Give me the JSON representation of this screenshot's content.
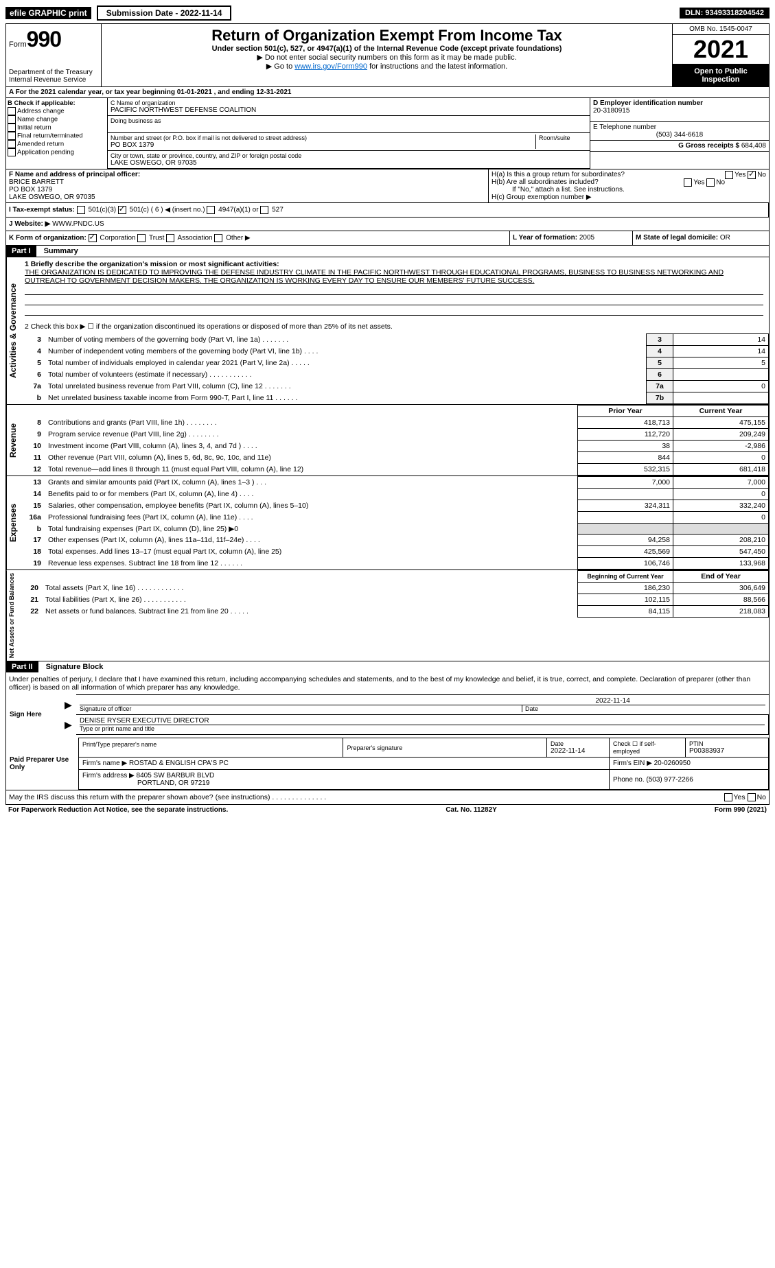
{
  "top": {
    "efile": "efile GRAPHIC print",
    "subdate_label": "Submission Date - 2022-11-14",
    "dln": "DLN: 93493318204542"
  },
  "header": {
    "form_prefix": "Form",
    "form_num": "990",
    "dept": "Department of the Treasury",
    "irs": "Internal Revenue Service",
    "title": "Return of Organization Exempt From Income Tax",
    "sub1": "Under section 501(c), 527, or 4947(a)(1) of the Internal Revenue Code (except private foundations)",
    "sub2": "▶ Do not enter social security numbers on this form as it may be made public.",
    "sub3_prefix": "▶ Go to ",
    "sub3_link": "www.irs.gov/Form990",
    "sub3_suffix": " for instructions and the latest information.",
    "omb": "OMB No. 1545-0047",
    "year": "2021",
    "open": "Open to Public Inspection"
  },
  "periodA": "A For the 2021 calendar year, or tax year beginning 01-01-2021    , and ending 12-31-2021",
  "sectionB": {
    "label": "B Check if applicable:",
    "opts": [
      "Address change",
      "Name change",
      "Initial return",
      "Final return/terminated",
      "Amended return",
      "Application pending"
    ]
  },
  "sectionC": {
    "name_label": "C Name of organization",
    "name": "PACIFIC NORTHWEST DEFENSE COALITION",
    "dba_label": "Doing business as",
    "addr_label": "Number and street (or P.O. box if mail is not delivered to street address)",
    "room_label": "Room/suite",
    "addr": "PO BOX 1379",
    "city_label": "City or town, state or province, country, and ZIP or foreign postal code",
    "city": "LAKE OSWEGO, OR  97035"
  },
  "sectionD": {
    "label": "D Employer identification number",
    "ein": "20-3180915"
  },
  "sectionE": {
    "label": "E Telephone number",
    "phone": "(503) 344-6618"
  },
  "sectionG": {
    "label": "G Gross receipts $",
    "amount": "684,408"
  },
  "sectionF": {
    "label": "F Name and address of principal officer:",
    "name": "BRICE BARRETT",
    "addr1": "PO BOX 1379",
    "addr2": "LAKE OSWEGO, OR  97035"
  },
  "sectionH": {
    "a": "H(a)  Is this a group return for subordinates?",
    "b": "H(b)  Are all subordinates included?",
    "note": "If \"No,\" attach a list. See instructions.",
    "c": "H(c)  Group exemption number ▶",
    "yes": "Yes",
    "no": "No"
  },
  "sectionI": {
    "label": "I    Tax-exempt status:",
    "o1": "501(c)(3)",
    "o2": "501(c) ( 6 ) ◀ (insert no.)",
    "o3": "4947(a)(1) or",
    "o4": "527"
  },
  "sectionJ": {
    "label": "J   Website: ▶",
    "url": "WWW.PNDC.US"
  },
  "sectionK": {
    "label": "K Form of organization:",
    "o1": "Corporation",
    "o2": "Trust",
    "o3": "Association",
    "o4": "Other ▶"
  },
  "sectionL": {
    "label": "L Year of formation:",
    "val": "2005"
  },
  "sectionM": {
    "label": "M State of legal domicile:",
    "val": "OR"
  },
  "part1": {
    "header": "Part I",
    "title": "Summary",
    "line1_label": "1  Briefly describe the organization's mission or most significant activities:",
    "mission": "THE ORGANIZATION IS DEDICATED TO IMPROVING THE DEFENSE INDUSTRY CLIMATE IN THE PACIFIC NORTHWEST THROUGH EDUCATIONAL PROGRAMS, BUSINESS TO BUSINESS NETWORKING AND OUTREACH TO GOVERNMENT DECISION MAKERS. THE ORGANIZATION IS WORKING EVERY DAY TO ENSURE OUR MEMBERS' FUTURE SUCCESS.",
    "line2": "2   Check this box ▶ ☐ if the organization discontinued its operations or disposed of more than 25% of its net assets.",
    "gov_label": "Activities & Governance",
    "rev_label": "Revenue",
    "exp_label": "Expenses",
    "net_label": "Net Assets or Fund Balances",
    "rows_top": [
      {
        "n": "3",
        "d": "Number of voting members of the governing body (Part VI, line 1a)   .    .    .    .    .    .    .",
        "box": "3",
        "v": "14"
      },
      {
        "n": "4",
        "d": "Number of independent voting members of the governing body (Part VI, line 1b)   .    .    .    .",
        "box": "4",
        "v": "14"
      },
      {
        "n": "5",
        "d": "Total number of individuals employed in calendar year 2021 (Part V, line 2a)   .    .    .    .    .",
        "box": "5",
        "v": "5"
      },
      {
        "n": "6",
        "d": "Total number of volunteers (estimate if necessary)    .    .    .    .    .    .    .    .    .    .    .",
        "box": "6",
        "v": ""
      },
      {
        "n": "7a",
        "d": "Total unrelated business revenue from Part VIII, column (C), line 12   .    .    .    .    .    .    .",
        "box": "7a",
        "v": "0"
      },
      {
        "n": "b",
        "d": "Net unrelated business taxable income from Form 990-T, Part I, line 11   .    .    .    .    .    .",
        "box": "7b",
        "v": ""
      }
    ],
    "col_prior": "Prior Year",
    "col_current": "Current Year",
    "rows_rev": [
      {
        "n": "8",
        "d": "Contributions and grants (Part VIII, line 1h)    .    .    .    .    .    .    .    .",
        "p": "418,713",
        "c": "475,155"
      },
      {
        "n": "9",
        "d": "Program service revenue (Part VIII, line 2g)    .    .    .    .    .    .    .    .",
        "p": "112,720",
        "c": "209,249"
      },
      {
        "n": "10",
        "d": "Investment income (Part VIII, column (A), lines 3, 4, and 7d )    .    .    .    .",
        "p": "38",
        "c": "-2,986"
      },
      {
        "n": "11",
        "d": "Other revenue (Part VIII, column (A), lines 5, 6d, 8c, 9c, 10c, and 11e)",
        "p": "844",
        "c": "0"
      },
      {
        "n": "12",
        "d": "Total revenue—add lines 8 through 11 (must equal Part VIII, column (A), line 12)",
        "p": "532,315",
        "c": "681,418"
      }
    ],
    "rows_exp": [
      {
        "n": "13",
        "d": "Grants and similar amounts paid (Part IX, column (A), lines 1–3 )   .    .    .",
        "p": "7,000",
        "c": "7,000"
      },
      {
        "n": "14",
        "d": "Benefits paid to or for members (Part IX, column (A), line 4)   .    .    .    .",
        "p": "",
        "c": "0"
      },
      {
        "n": "15",
        "d": "Salaries, other compensation, employee benefits (Part IX, column (A), lines 5–10)",
        "p": "324,311",
        "c": "332,240"
      },
      {
        "n": "16a",
        "d": "Professional fundraising fees (Part IX, column (A), line 11e)   .    .    .    .",
        "p": "",
        "c": "0"
      },
      {
        "n": "b",
        "d": "Total fundraising expenses (Part IX, column (D), line 25) ▶0",
        "p": "",
        "c": "",
        "shaded": true
      },
      {
        "n": "17",
        "d": "Other expenses (Part IX, column (A), lines 11a–11d, 11f–24e)    .    .    .    .",
        "p": "94,258",
        "c": "208,210"
      },
      {
        "n": "18",
        "d": "Total expenses. Add lines 13–17 (must equal Part IX, column (A), line 25)",
        "p": "425,569",
        "c": "547,450"
      },
      {
        "n": "19",
        "d": "Revenue less expenses. Subtract line 18 from line 12   .    .    .    .    .    .",
        "p": "106,746",
        "c": "133,968"
      }
    ],
    "col_begin": "Beginning of Current Year",
    "col_end": "End of Year",
    "rows_net": [
      {
        "n": "20",
        "d": "Total assets (Part X, line 16)   .    .    .    .    .    .    .    .    .    .    .    .",
        "p": "186,230",
        "c": "306,649"
      },
      {
        "n": "21",
        "d": "Total liabilities (Part X, line 26)   .    .    .    .    .    .    .    .    .    .    .",
        "p": "102,115",
        "c": "88,566"
      },
      {
        "n": "22",
        "d": "Net assets or fund balances. Subtract line 21 from line 20   .    .    .    .    .",
        "p": "84,115",
        "c": "218,083"
      }
    ]
  },
  "part2": {
    "header": "Part II",
    "title": "Signature Block",
    "decl": "Under penalties of perjury, I declare that I have examined this return, including accompanying schedules and statements, and to the best of my knowledge and belief, it is true, correct, and complete. Declaration of preparer (other than officer) is based on all information of which preparer has any knowledge.",
    "sign_here": "Sign Here",
    "sig_date": "2022-11-14",
    "sig_officer": "Signature of officer",
    "date_label": "Date",
    "officer_name": "DENISE RYSER  EXECUTIVE DIRECTOR",
    "type_name": "Type or print name and title",
    "paid": "Paid Preparer Use Only",
    "prep_name_label": "Print/Type preparer's name",
    "prep_sig_label": "Preparer's signature",
    "prep_date": "2022-11-14",
    "check_self": "Check ☐ if self-employed",
    "ptin_label": "PTIN",
    "ptin": "P00383937",
    "firm_name_label": "Firm's name    ▶",
    "firm_name": "ROSTAD & ENGLISH CPA'S PC",
    "firm_ein_label": "Firm's EIN ▶",
    "firm_ein": "20-0260950",
    "firm_addr_label": "Firm's address ▶",
    "firm_addr1": "8405 SW BARBUR BLVD",
    "firm_addr2": "PORTLAND, OR  97219",
    "firm_phone_label": "Phone no.",
    "firm_phone": "(503) 977-2266",
    "may_irs": "May the IRS discuss this return with the preparer shown above? (see instructions)   .    .    .    .    .    .    .    .    .    .    .    .    .    ."
  },
  "footer": {
    "pra": "For Paperwork Reduction Act Notice, see the separate instructions.",
    "cat": "Cat. No. 11282Y",
    "form": "Form 990 (2021)"
  }
}
